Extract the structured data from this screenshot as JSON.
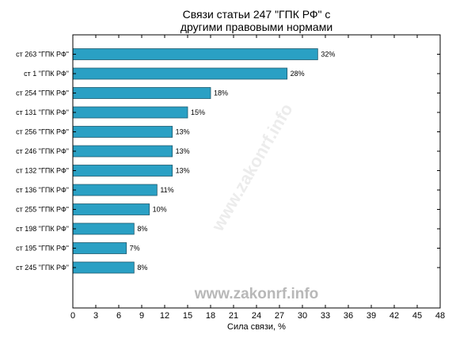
{
  "chart_data": {
    "type": "bar",
    "orientation": "horizontal",
    "title": [
      "Связи статьи 247 \"ГПК РФ\" с",
      "другими правовыми нормами"
    ],
    "categories": [
      "ст 263 \"ГПК РФ\"",
      "ст 1 \"ГПК РФ\"",
      "ст 254 \"ГПК РФ\"",
      "ст 131 \"ГПК РФ\"",
      "ст 256 \"ГПК РФ\"",
      "ст 246 \"ГПК РФ\"",
      "ст 132 \"ГПК РФ\"",
      "ст 136 \"ГПК РФ\"",
      "ст 255 \"ГПК РФ\"",
      "ст 198 \"ГПК РФ\"",
      "ст 195 \"ГПК РФ\"",
      "ст 245 \"ГПК РФ\""
    ],
    "values": [
      32,
      28,
      18,
      15,
      13,
      13,
      13,
      11,
      10,
      8,
      7,
      8
    ],
    "data_labels": [
      "32%",
      "28%",
      "18%",
      "15%",
      "13%",
      "13%",
      "13%",
      "11%",
      "10%",
      "8%",
      "7%",
      "8%"
    ],
    "xlabel": "Сила связи, %",
    "ylabel": "",
    "xlim": [
      0,
      48
    ],
    "xticks": [
      0,
      3,
      6,
      9,
      12,
      15,
      18,
      21,
      24,
      27,
      30,
      33,
      36,
      39,
      42,
      45,
      48
    ],
    "grid": false,
    "bar_color": "#2aa0c4",
    "bar_edge_color": "#1f5a6e",
    "watermark": "www.zakonrf.info"
  }
}
